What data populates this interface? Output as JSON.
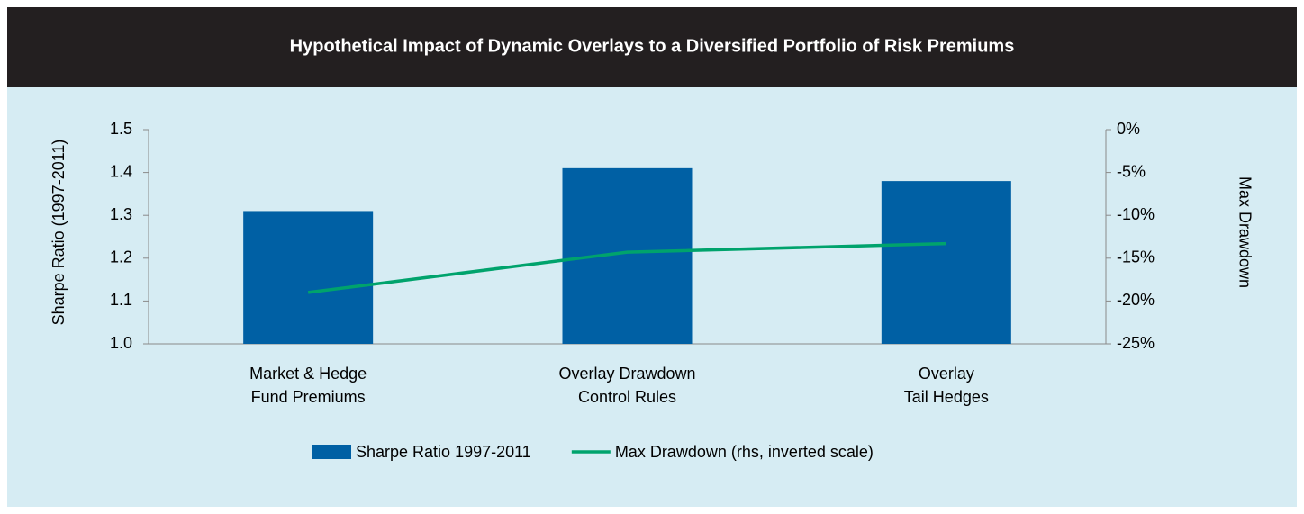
{
  "chart_data": {
    "type": "bar_line",
    "title": "Hypothetical Impact of Dynamic Overlays to a Diversified Portfolio of Risk Premiums",
    "ylabel": "Sharpe Ratio (1997-2011)",
    "y2label": "Max Drawdown",
    "categories": [
      [
        "Market & Hedge",
        "Fund Premiums"
      ],
      [
        "Overlay Drawdown",
        "Control Rules"
      ],
      [
        "Overlay",
        "Tail Hedges"
      ]
    ],
    "series": [
      {
        "name": "Sharpe Ratio 1997-2011",
        "color": "#0060a4",
        "type": "bar",
        "values": [
          1.31,
          1.41,
          1.38
        ]
      },
      {
        "name": "Max Drawdown (rhs, inverted scale)",
        "color": "#00a36c",
        "type": "line",
        "axis": "y2",
        "values": [
          -19,
          -14.3,
          -13.3
        ]
      }
    ],
    "ylim": [
      1.0,
      1.5
    ],
    "yticks": [
      {
        "value": 1.0,
        "label": "1.0"
      },
      1.1,
      1.2,
      1.3,
      1.4,
      1.5
    ],
    "y2lim": [
      -25,
      0
    ],
    "y2ticks": [
      {
        "value": -25,
        "label": "-25%"
      },
      {
        "value": -20,
        "label": "-20%"
      },
      {
        "value": -15,
        "label": "-15%"
      },
      {
        "value": -10,
        "label": "-10%"
      },
      {
        "value": -5,
        "label": "-5%"
      },
      {
        "value": 0,
        "label": "0%"
      }
    ]
  }
}
